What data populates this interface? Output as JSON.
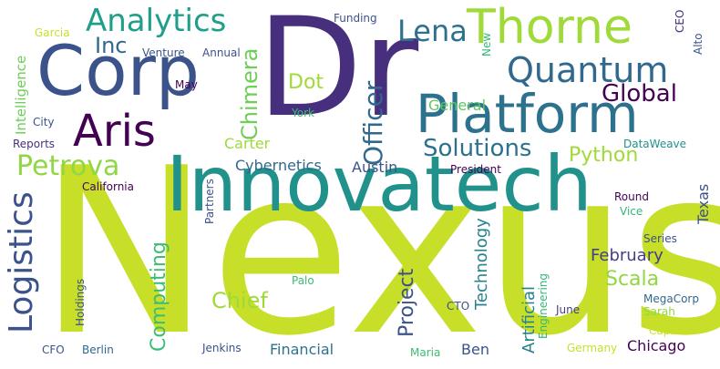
{
  "words": [
    {
      "text": "Nexus",
      "color": "#c8df29"
    },
    {
      "text": "Dr",
      "color": "#472f7d"
    },
    {
      "text": "Innovatech",
      "color": "#21918c"
    },
    {
      "text": "Corp",
      "color": "#3b528b"
    },
    {
      "text": "Platform",
      "color": "#2c728e"
    },
    {
      "text": "Thorne",
      "color": "#a0da39"
    },
    {
      "text": "Aris",
      "color": "#440154"
    },
    {
      "text": "Analytics",
      "color": "#1f9e89"
    },
    {
      "text": "Quantum",
      "color": "#31688e"
    },
    {
      "text": "Lena",
      "color": "#2c728e"
    },
    {
      "text": "Petrova",
      "color": "#90d743"
    },
    {
      "text": "Logistics",
      "color": "#3b528b"
    },
    {
      "text": "Global",
      "color": "#440154"
    },
    {
      "text": "Officer",
      "color": "#31688e"
    },
    {
      "text": "Solutions",
      "color": "#2c728e"
    },
    {
      "text": "Chimera",
      "color": "#6ece58"
    },
    {
      "text": "Inc",
      "color": "#31688e"
    },
    {
      "text": "Dot",
      "color": "#a0da39"
    },
    {
      "text": "Computing",
      "color": "#3dbc74"
    },
    {
      "text": "Chief",
      "color": "#a0da39"
    },
    {
      "text": "Python",
      "color": "#a0da39"
    },
    {
      "text": "Project",
      "color": "#3b528b"
    },
    {
      "text": "Scala",
      "color": "#90d743"
    },
    {
      "text": "Technology",
      "color": "#26828e"
    },
    {
      "text": "Artificial",
      "color": "#26828e"
    },
    {
      "text": "February",
      "color": "#433e85"
    },
    {
      "text": "Texas",
      "color": "#3b528b"
    },
    {
      "text": "Cybernetics",
      "color": "#31688e"
    },
    {
      "text": "Austin",
      "color": "#3b528b"
    },
    {
      "text": "Carter",
      "color": "#a0da39"
    },
    {
      "text": "General",
      "color": "#5ec962"
    },
    {
      "text": "Financial",
      "color": "#2c728e"
    },
    {
      "text": "Chicago",
      "color": "#440154"
    },
    {
      "text": "Ben",
      "color": "#3b528b"
    },
    {
      "text": "Intelligence",
      "color": "#6ece58"
    },
    {
      "text": "DataWeave",
      "color": "#21918c"
    },
    {
      "text": "California",
      "color": "#440154"
    },
    {
      "text": "President",
      "color": "#440154"
    },
    {
      "text": "Round",
      "color": "#440154"
    },
    {
      "text": "Vice",
      "color": "#35b779"
    },
    {
      "text": "Series",
      "color": "#3b528b"
    },
    {
      "text": "MegaCorp",
      "color": "#31688e"
    },
    {
      "text": "Sarah",
      "color": "#90d743"
    },
    {
      "text": "Capital",
      "color": "#c8df29"
    },
    {
      "text": "Germany",
      "color": "#c8df29"
    },
    {
      "text": "June",
      "color": "#433e85"
    },
    {
      "text": "CTO",
      "color": "#3b528b"
    },
    {
      "text": "Maria",
      "color": "#3dbc74"
    },
    {
      "text": "Engineering",
      "color": "#35b779"
    },
    {
      "text": "Jenkins",
      "color": "#3b528b"
    },
    {
      "text": "Berlin",
      "color": "#31688e"
    },
    {
      "text": "CFO",
      "color": "#3b528b"
    },
    {
      "text": "Holdings",
      "color": "#3b528b"
    },
    {
      "text": "Palo",
      "color": "#3dbc74"
    },
    {
      "text": "Partners",
      "color": "#3b528b"
    },
    {
      "text": "York",
      "color": "#3dbc74"
    },
    {
      "text": "May",
      "color": "#440154"
    },
    {
      "text": "Venture",
      "color": "#3b528b"
    },
    {
      "text": "Annual",
      "color": "#3b528b"
    },
    {
      "text": "Funding",
      "color": "#3b528b"
    },
    {
      "text": "New",
      "color": "#35b779"
    },
    {
      "text": "CEO",
      "color": "#472f7d"
    },
    {
      "text": "Alto",
      "color": "#3b528b"
    },
    {
      "text": "Garcia",
      "color": "#c8df29"
    },
    {
      "text": "City",
      "color": "#3b528b"
    },
    {
      "text": "Reports",
      "color": "#472f7d"
    }
  ]
}
